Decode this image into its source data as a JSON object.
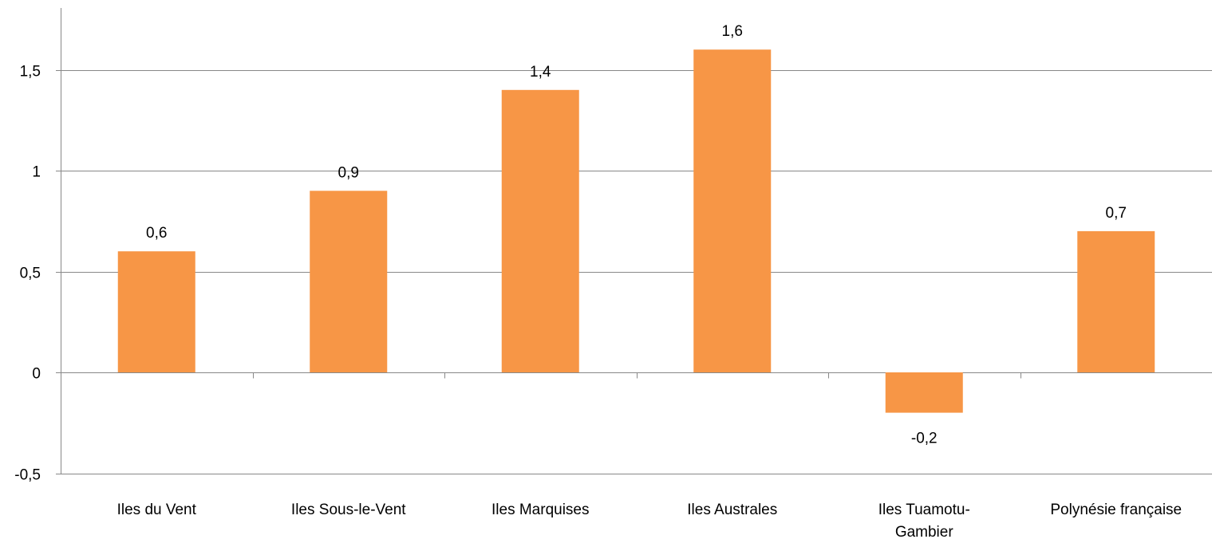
{
  "chart_data": {
    "type": "bar",
    "categories": [
      [
        "Iles du Vent"
      ],
      [
        "Iles Sous-le-Vent"
      ],
      [
        "Iles Marquises"
      ],
      [
        "Iles Australes"
      ],
      [
        "Iles Tuamotu-",
        "Gambier"
      ],
      [
        "Polynésie française"
      ]
    ],
    "values": [
      0.6,
      0.9,
      1.4,
      1.6,
      -0.2,
      0.7
    ],
    "data_labels": [
      "0,6",
      "0,9",
      "1,4",
      "1,6",
      "-0,2",
      "0,7"
    ],
    "y_ticks": [
      -0.5,
      0,
      0.5,
      1,
      1.5
    ],
    "y_tick_labels": [
      "-0,5",
      "0",
      "0,5",
      "1",
      "1,5"
    ],
    "ylim": [
      -0.5,
      1.8
    ],
    "grid": true,
    "legend": "none",
    "bar_color": "#F79646",
    "grid_color": "#888888",
    "axis_color": "#888888"
  }
}
